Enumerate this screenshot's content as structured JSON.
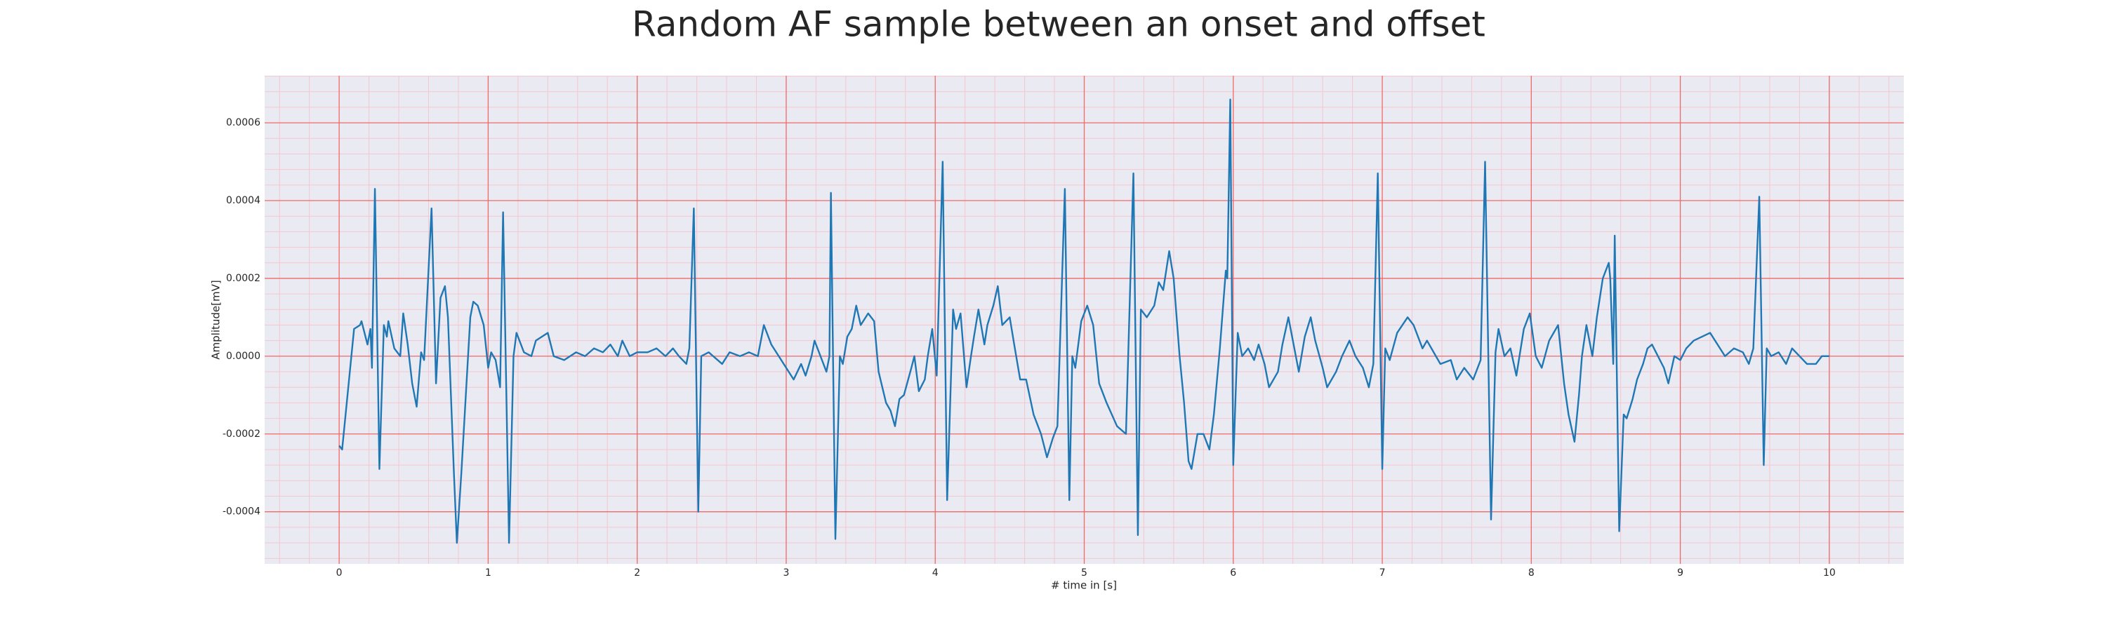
{
  "chart_data": {
    "type": "line",
    "title": "Random AF sample between an onset and offset",
    "x_label": "# time in [s]",
    "y_label": "Amplitude[mV]",
    "color": "#1f77b4",
    "grid": true,
    "minor_grid": true,
    "xlim": [
      -0.5,
      10.5
    ],
    "ylim": [
      -0.000534,
      0.000721
    ],
    "xticks": [
      0,
      1,
      2,
      3,
      4,
      5,
      6,
      7,
      8,
      9,
      10
    ],
    "yticks": [
      {
        "value": -0.0004,
        "label": "-0.0004"
      },
      {
        "value": -0.0002,
        "label": "-0.0002"
      },
      {
        "value": 0,
        "label": "0.0000"
      },
      {
        "value": 0.0002,
        "label": "0.0002"
      },
      {
        "value": 0.0004,
        "label": "0.0004"
      },
      {
        "value": 0.0006,
        "label": "0.0006"
      }
    ],
    "x": [
      0,
      0.02,
      0.1,
      0.14,
      0.15,
      0.19,
      0.21,
      0.22,
      0.24,
      0.27,
      0.3,
      0.32,
      0.33,
      0.37,
      0.41,
      0.43,
      0.46,
      0.49,
      0.52,
      0.55,
      0.57,
      0.62,
      0.65,
      0.68,
      0.71,
      0.73,
      0.77,
      0.79,
      0.82,
      0.85,
      0.88,
      0.9,
      0.93,
      0.97,
      1.0,
      1.02,
      1.05,
      1.08,
      1.1,
      1.14,
      1.17,
      1.19,
      1.24,
      1.29,
      1.32,
      1.4,
      1.44,
      1.51,
      1.59,
      1.65,
      1.71,
      1.77,
      1.82,
      1.87,
      1.9,
      1.95,
      2.0,
      2.07,
      2.13,
      2.19,
      2.24,
      2.28,
      2.33,
      2.35,
      2.38,
      2.41,
      2.43,
      2.48,
      2.57,
      2.62,
      2.69,
      2.75,
      2.81,
      2.85,
      2.9,
      3.05,
      3.1,
      3.13,
      3.17,
      3.19,
      3.23,
      3.27,
      3.29,
      3.3,
      3.33,
      3.36,
      3.38,
      3.41,
      3.44,
      3.47,
      3.5,
      3.55,
      3.59,
      3.62,
      3.67,
      3.7,
      3.73,
      3.76,
      3.79,
      3.84,
      3.86,
      3.89,
      3.93,
      3.95,
      3.98,
      4.01,
      4.05,
      4.08,
      4.12,
      4.14,
      4.17,
      4.21,
      4.24,
      4.26,
      4.29,
      4.33,
      4.35,
      4.39,
      4.42,
      4.45,
      4.5,
      4.53,
      4.57,
      4.61,
      4.66,
      4.71,
      4.75,
      4.79,
      4.82,
      4.87,
      4.9,
      4.92,
      4.94,
      4.98,
      5.02,
      5.06,
      5.1,
      5.15,
      5.22,
      5.28,
      5.33,
      5.36,
      5.38,
      5.42,
      5.47,
      5.5,
      5.53,
      5.57,
      5.6,
      5.64,
      5.67,
      5.7,
      5.72,
      5.76,
      5.8,
      5.84,
      5.87,
      5.91,
      5.93,
      5.95,
      5.96,
      5.98,
      6.0,
      6.03,
      6.06,
      6.1,
      6.14,
      6.17,
      6.21,
      6.24,
      6.3,
      6.33,
      6.37,
      6.41,
      6.44,
      6.48,
      6.52,
      6.55,
      6.6,
      6.63,
      6.69,
      6.73,
      6.78,
      6.82,
      6.87,
      6.91,
      6.94,
      6.97,
      7.0,
      7.02,
      7.05,
      7.1,
      7.17,
      7.21,
      7.27,
      7.3,
      7.36,
      7.39,
      7.46,
      7.5,
      7.55,
      7.61,
      7.66,
      7.69,
      7.73,
      7.76,
      7.78,
      7.82,
      7.86,
      7.9,
      7.95,
      7.99,
      8.03,
      8.07,
      8.12,
      8.18,
      8.22,
      8.25,
      8.29,
      8.32,
      8.34,
      8.37,
      8.41,
      8.44,
      8.48,
      8.52,
      8.53,
      8.55,
      8.56,
      8.59,
      8.62,
      8.64,
      8.68,
      8.71,
      8.75,
      8.78,
      8.81,
      8.85,
      8.89,
      8.92,
      8.96,
      9.0,
      9.04,
      9.09,
      9.2,
      9.25,
      9.3,
      9.36,
      9.42,
      9.46,
      9.49,
      9.53,
      9.56,
      9.58,
      9.61,
      9.66,
      9.71,
      9.75,
      9.8,
      9.85,
      9.91,
      9.95,
      10.0
    ],
    "values": [
      -0.00023,
      -0.00024,
      7e-05,
      8e-05,
      9e-05,
      3e-05,
      7e-05,
      -3e-05,
      0.00043,
      -0.00029,
      8e-05,
      5e-05,
      9e-05,
      2e-05,
      0,
      0.00011,
      3e-05,
      -7e-05,
      -0.00013,
      1e-05,
      -1e-05,
      0.00038,
      -7e-05,
      0.00015,
      0.00018,
      0.0001,
      -0.0003,
      -0.00048,
      -0.0003,
      -0.0001,
      0.0001,
      0.00014,
      0.00013,
      8e-05,
      -3e-05,
      1e-05,
      -1e-05,
      -8e-05,
      0.00037,
      -0.00048,
      0,
      6e-05,
      1e-05,
      0,
      4e-05,
      6e-05,
      0,
      -1e-05,
      1e-05,
      0,
      2e-05,
      1e-05,
      3e-05,
      0,
      4e-05,
      0,
      1e-05,
      1e-05,
      2e-05,
      0,
      2e-05,
      0,
      -2e-05,
      2e-05,
      0.00038,
      -0.0004,
      0,
      1e-05,
      -2e-05,
      1e-05,
      0,
      1e-05,
      0,
      8e-05,
      3e-05,
      -6e-05,
      -2e-05,
      -5e-05,
      0,
      4e-05,
      0,
      -4e-05,
      0,
      0.00042,
      -0.00047,
      0,
      -2e-05,
      5e-05,
      7e-05,
      0.00013,
      8e-05,
      0.00011,
      9e-05,
      -4e-05,
      -0.00012,
      -0.00014,
      -0.00018,
      -0.00011,
      -0.0001,
      -3e-05,
      0,
      -9e-05,
      -6e-05,
      0,
      7e-05,
      -5e-05,
      0.0005,
      -0.00037,
      0.00012,
      7e-05,
      0.00011,
      -8e-05,
      0,
      5e-05,
      0.00012,
      3e-05,
      8e-05,
      0.00013,
      0.00018,
      8e-05,
      0.0001,
      3e-05,
      -6e-05,
      -6e-05,
      -0.00015,
      -0.0002,
      -0.00026,
      -0.00021,
      -0.00018,
      0.00043,
      -0.00037,
      0,
      -3e-05,
      9e-05,
      0.00013,
      8e-05,
      -7e-05,
      -0.00012,
      -0.00018,
      -0.0002,
      0.00047,
      -0.00046,
      0.00012,
      0.0001,
      0.00013,
      0.00019,
      0.00017,
      0.00027,
      0.0002,
      0,
      -0.00012,
      -0.00027,
      -0.00029,
      -0.0002,
      -0.0002,
      -0.00024,
      -0.00015,
      2e-05,
      0.00012,
      0.00022,
      0.0002,
      0.00066,
      -0.00028,
      6e-05,
      0,
      2e-05,
      -1e-05,
      3e-05,
      -2e-05,
      -8e-05,
      -4e-05,
      3e-05,
      0.0001,
      2e-05,
      -4e-05,
      5e-05,
      0.0001,
      4e-05,
      -3e-05,
      -8e-05,
      -4e-05,
      0,
      4e-05,
      0,
      -3e-05,
      -8e-05,
      -2e-05,
      0.00047,
      -0.00029,
      2e-05,
      -1e-05,
      6e-05,
      0.0001,
      8e-05,
      2e-05,
      4e-05,
      0,
      -2e-05,
      -1e-05,
      -6e-05,
      -3e-05,
      -6e-05,
      -1e-05,
      0.0005,
      -0.00042,
      1e-05,
      7e-05,
      0,
      2e-05,
      -5e-05,
      7e-05,
      0.00011,
      0,
      -3e-05,
      4e-05,
      8e-05,
      -7e-05,
      -0.00015,
      -0.00022,
      -0.0001,
      0,
      8e-05,
      0,
      0.0001,
      0.0002,
      0.00024,
      0.0002,
      -2e-05,
      0.00031,
      -0.00045,
      -0.00015,
      -0.00016,
      -0.00011,
      -6e-05,
      -2e-05,
      2e-05,
      3e-05,
      0,
      -3e-05,
      -7e-05,
      0,
      -1e-05,
      2e-05,
      4e-05,
      6e-05,
      3e-05,
      0,
      2e-05,
      1e-05,
      -2e-05,
      2e-05,
      0.00041,
      -0.00028,
      2e-05,
      0,
      1e-05,
      -2e-05,
      2e-05,
      0,
      -2e-05,
      -2e-05,
      0,
      0
    ]
  }
}
